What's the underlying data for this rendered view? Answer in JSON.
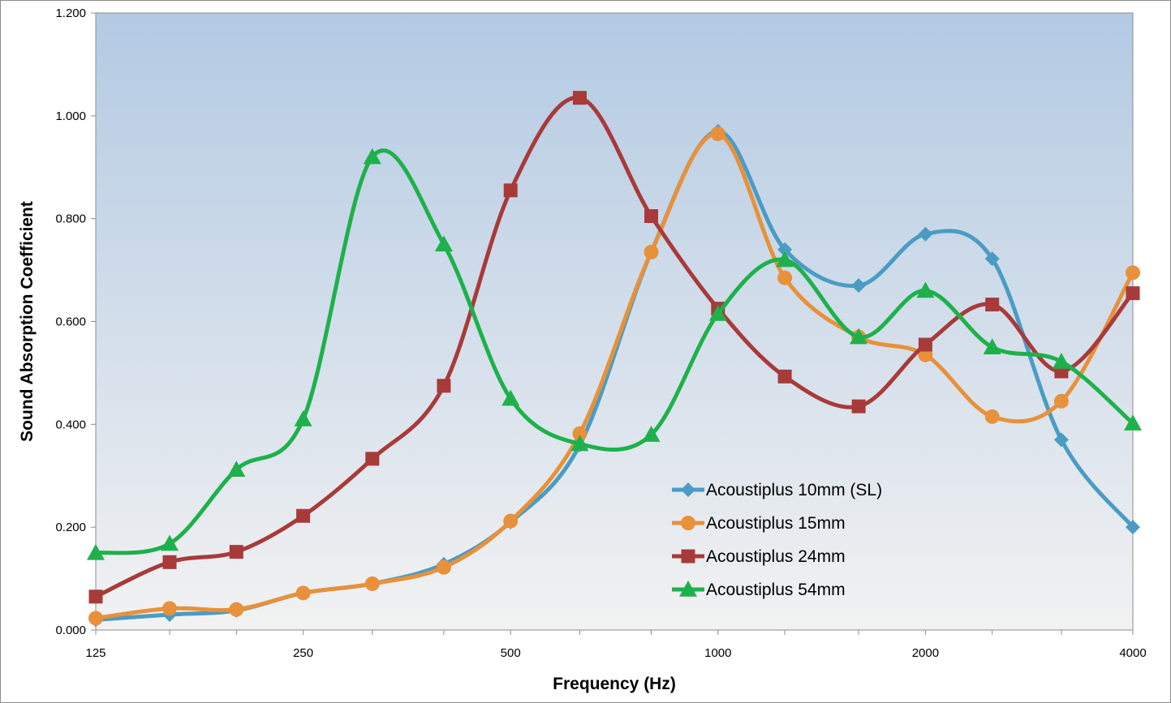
{
  "chart_data": {
    "type": "line",
    "title": "",
    "xlabel": "Frequency (Hz)",
    "ylabel": "Sound Absorption Coefficient",
    "x_scale": "log2",
    "xlim": [
      125,
      4000
    ],
    "ylim": [
      0,
      1.2
    ],
    "y_ticks": [
      "0.000",
      "0.200",
      "0.400",
      "0.600",
      "0.800",
      "1.000",
      "1.200"
    ],
    "x_ticks": [
      "125",
      "250",
      "500",
      "1000",
      "2000",
      "4000"
    ],
    "x": [
      125,
      160,
      200,
      250,
      315,
      400,
      500,
      630,
      800,
      1000,
      1250,
      1600,
      2000,
      2500,
      3150,
      4000
    ],
    "grid": false,
    "legend_position": "bottom-right inside plot",
    "series": [
      {
        "name": "Acoustiplus 10mm (SL)",
        "color": "#4a9cc4",
        "marker": "diamond",
        "values": [
          0.02,
          0.03,
          0.038,
          0.072,
          0.09,
          0.128,
          0.21,
          0.36,
          0.735,
          0.97,
          0.74,
          0.67,
          0.77,
          0.722,
          0.37,
          0.2
        ]
      },
      {
        "name": "Acoustiplus 15mm",
        "color": "#e8913a",
        "marker": "circle",
        "values": [
          0.023,
          0.042,
          0.04,
          0.072,
          0.09,
          0.122,
          0.212,
          0.382,
          0.735,
          0.965,
          0.685,
          0.57,
          0.535,
          0.415,
          0.445,
          0.695
        ]
      },
      {
        "name": "Acoustiplus 24mm",
        "color": "#a93a3a",
        "marker": "square",
        "values": [
          0.065,
          0.132,
          0.152,
          0.222,
          0.333,
          0.475,
          0.855,
          1.035,
          0.805,
          0.625,
          0.493,
          0.435,
          0.555,
          0.633,
          0.503,
          0.655
        ]
      },
      {
        "name": "Acoustiplus 54mm",
        "color": "#1eb14b",
        "marker": "triangle",
        "values": [
          0.15,
          0.168,
          0.312,
          0.41,
          0.92,
          0.75,
          0.45,
          0.362,
          0.38,
          0.615,
          0.72,
          0.57,
          0.66,
          0.55,
          0.522,
          0.402
        ]
      }
    ]
  }
}
